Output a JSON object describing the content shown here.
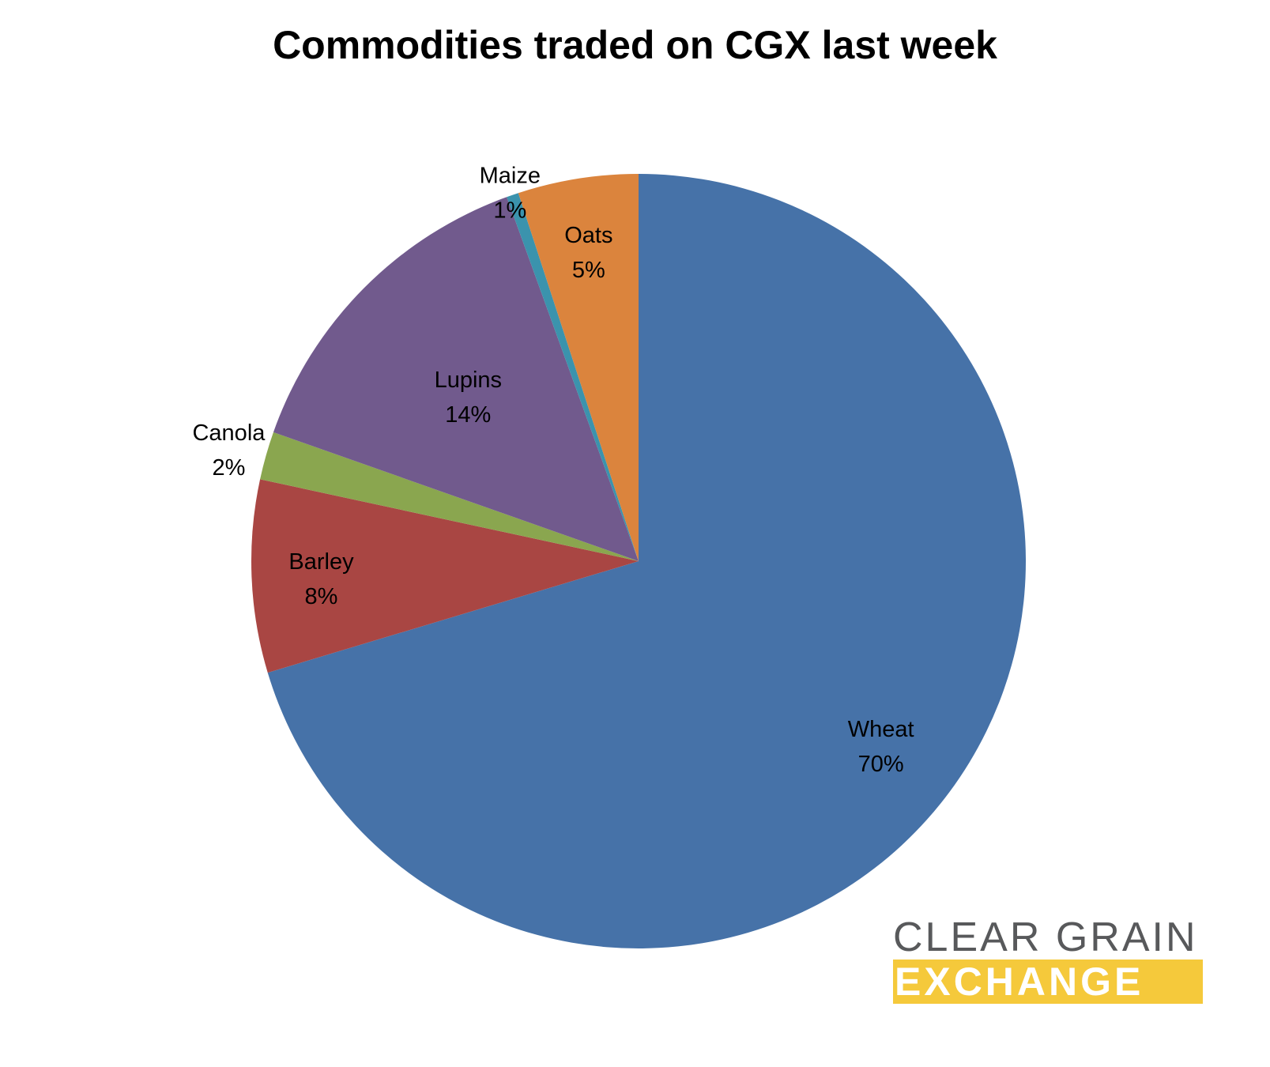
{
  "chart_data": {
    "type": "pie",
    "title": "Commodities traded on CGX last week",
    "slices": [
      {
        "label": "Wheat",
        "value": 70,
        "value_label": "70%",
        "color": "#4672a8"
      },
      {
        "label": "Barley",
        "value": 8,
        "value_label": "8%",
        "color": "#a94643"
      },
      {
        "label": "Canola",
        "value": 2,
        "value_label": "2%",
        "color": "#8aa64f"
      },
      {
        "label": "Lupins",
        "value": 14,
        "value_label": "14%",
        "color": "#715a8d"
      },
      {
        "label": "Maize",
        "value": 0.5,
        "value_label": "1%",
        "color": "#3b93ad"
      },
      {
        "label": "Oats",
        "value": 5,
        "value_label": "5%",
        "color": "#db843d"
      }
    ],
    "start": "12 o'clock",
    "direction": "clockwise"
  },
  "logo": {
    "line1": "CLEAR GRAIN",
    "line2": "EXCHANGE",
    "accent": "#f5c93b",
    "text_color": "#58595b"
  }
}
